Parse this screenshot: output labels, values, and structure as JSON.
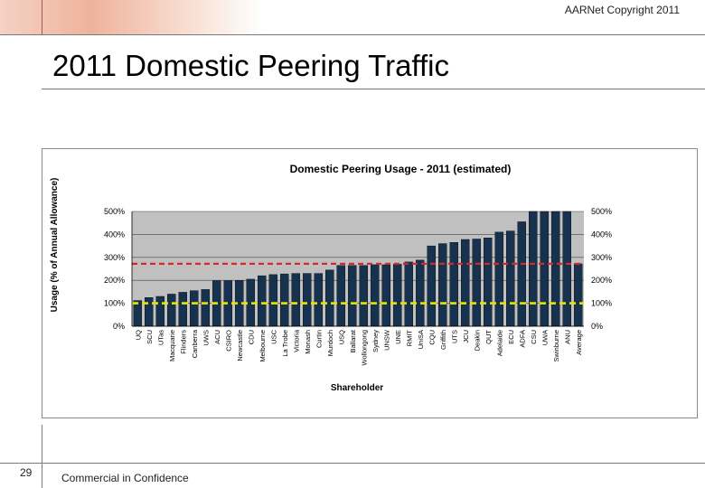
{
  "header": {
    "copyright": "AARNet Copyright 2011"
  },
  "slide": {
    "title": "2011 Domestic Peering Traffic",
    "number": "29",
    "footer": "Commercial in Confidence"
  },
  "colors": {
    "bar": "#16324f",
    "plot_bg": "#c0c0c0",
    "average_line": "#d62828",
    "reference_line": "#e6e600"
  },
  "chart_data": {
    "type": "bar",
    "title": "Domestic Peering Usage - 2011 (estimated)",
    "xlabel": "Shareholder",
    "ylabel": "Usage (% of Annual Allowance)",
    "ylim": [
      0,
      500
    ],
    "yticks": [
      "0%",
      "100%",
      "200%",
      "300%",
      "400%",
      "500%"
    ],
    "ytick_values": [
      0,
      100,
      200,
      300,
      400,
      500
    ],
    "categories": [
      "UQ",
      "SCU",
      "UTas",
      "Macquarie",
      "Flinders",
      "Canberra",
      "UWS",
      "ACU",
      "CSIRO",
      "Newcastle",
      "CDU",
      "Melbourne",
      "USC",
      "La Trobe",
      "Victoria",
      "Monash",
      "Curtin",
      "Murdoch",
      "USQ",
      "Ballarat",
      "Wollongong",
      "Sydney",
      "UNSW",
      "UNE",
      "RMIT",
      "UniSA",
      "CQU",
      "Griffith",
      "UTS",
      "JCU",
      "Deakin",
      "QUT",
      "Adelaide",
      "ECU",
      "ADFA",
      "CSU",
      "UWA",
      "Swinburne",
      "ANU",
      "Average"
    ],
    "values": [
      112,
      125,
      130,
      140,
      148,
      155,
      160,
      198,
      198,
      200,
      205,
      220,
      225,
      228,
      230,
      230,
      230,
      245,
      265,
      265,
      265,
      268,
      268,
      270,
      280,
      288,
      350,
      360,
      365,
      378,
      380,
      385,
      410,
      415,
      455,
      500,
      500,
      500,
      500,
      272
    ],
    "average_line": 272,
    "reference_line": 100
  }
}
